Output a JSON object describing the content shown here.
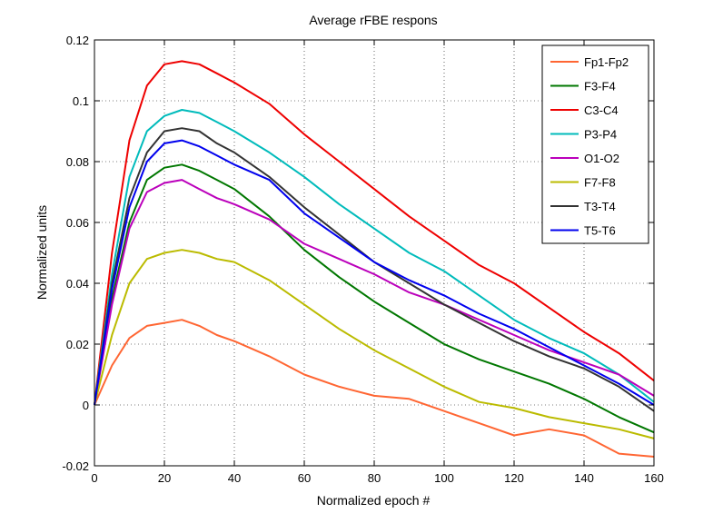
{
  "chart_data": {
    "type": "line",
    "title": "Average rFBE respons",
    "xlabel": "Normalized epoch #",
    "ylabel": "Normalized units",
    "xlim": [
      0,
      160
    ],
    "ylim": [
      -0.02,
      0.12
    ],
    "x_ticks": [
      0,
      20,
      40,
      60,
      80,
      100,
      120,
      140,
      160
    ],
    "y_ticks": [
      -0.02,
      0,
      0.02,
      0.04,
      0.06,
      0.08,
      0.1,
      0.12
    ],
    "x_tick_labels": [
      "0",
      "20",
      "40",
      "60",
      "80",
      "100",
      "120",
      "140",
      "160"
    ],
    "y_tick_labels": [
      "-0.02",
      "0",
      "0.02",
      "0.04",
      "0.06",
      "0.08",
      "0.1",
      "0.12"
    ],
    "grid": true,
    "legend_position": "top-right",
    "x": [
      0,
      5,
      10,
      15,
      20,
      25,
      30,
      35,
      40,
      50,
      60,
      70,
      80,
      90,
      100,
      110,
      120,
      130,
      140,
      150,
      160
    ],
    "series": [
      {
        "name": "Fp1-Fp2",
        "color": "#ff6633",
        "values": [
          0,
          0.013,
          0.022,
          0.026,
          0.027,
          0.028,
          0.026,
          0.023,
          0.021,
          0.016,
          0.01,
          0.006,
          0.003,
          0.002,
          -0.002,
          -0.006,
          -0.01,
          -0.008,
          -0.01,
          -0.016,
          -0.017
        ]
      },
      {
        "name": "F3-F4",
        "color": "#007700",
        "values": [
          0,
          0.035,
          0.06,
          0.074,
          0.078,
          0.079,
          0.077,
          0.074,
          0.071,
          0.062,
          0.051,
          0.042,
          0.034,
          0.027,
          0.02,
          0.015,
          0.011,
          0.007,
          0.002,
          -0.004,
          -0.009
        ]
      },
      {
        "name": "C3-C4",
        "color": "#ee0000",
        "values": [
          0,
          0.05,
          0.087,
          0.105,
          0.112,
          0.113,
          0.112,
          0.109,
          0.106,
          0.099,
          0.089,
          0.08,
          0.071,
          0.062,
          0.054,
          0.046,
          0.04,
          0.032,
          0.024,
          0.017,
          0.008
        ]
      },
      {
        "name": "P3-P4",
        "color": "#00bbbb",
        "values": [
          0,
          0.043,
          0.075,
          0.09,
          0.095,
          0.097,
          0.096,
          0.093,
          0.09,
          0.083,
          0.075,
          0.066,
          0.058,
          0.05,
          0.044,
          0.036,
          0.028,
          0.022,
          0.017,
          0.01,
          0.001
        ]
      },
      {
        "name": "O1-O2",
        "color": "#bb00bb",
        "values": [
          0,
          0.033,
          0.058,
          0.07,
          0.073,
          0.074,
          0.071,
          0.068,
          0.066,
          0.061,
          0.053,
          0.048,
          0.043,
          0.037,
          0.033,
          0.028,
          0.023,
          0.018,
          0.014,
          0.01,
          0.003
        ]
      },
      {
        "name": "F7-F8",
        "color": "#bbbb00",
        "values": [
          0,
          0.023,
          0.04,
          0.048,
          0.05,
          0.051,
          0.05,
          0.048,
          0.047,
          0.041,
          0.033,
          0.025,
          0.018,
          0.012,
          0.006,
          0.001,
          -0.001,
          -0.004,
          -0.006,
          -0.008,
          -0.011
        ]
      },
      {
        "name": "T3-T4",
        "color": "#333333",
        "values": [
          0,
          0.04,
          0.068,
          0.083,
          0.09,
          0.091,
          0.09,
          0.086,
          0.083,
          0.075,
          0.065,
          0.056,
          0.047,
          0.04,
          0.033,
          0.027,
          0.021,
          0.016,
          0.012,
          0.006,
          -0.002
        ]
      },
      {
        "name": "T5-T6",
        "color": "#0000ee",
        "values": [
          0,
          0.038,
          0.065,
          0.08,
          0.086,
          0.087,
          0.085,
          0.082,
          0.079,
          0.074,
          0.063,
          0.055,
          0.047,
          0.041,
          0.036,
          0.03,
          0.025,
          0.019,
          0.013,
          0.007,
          0.0
        ]
      }
    ]
  }
}
